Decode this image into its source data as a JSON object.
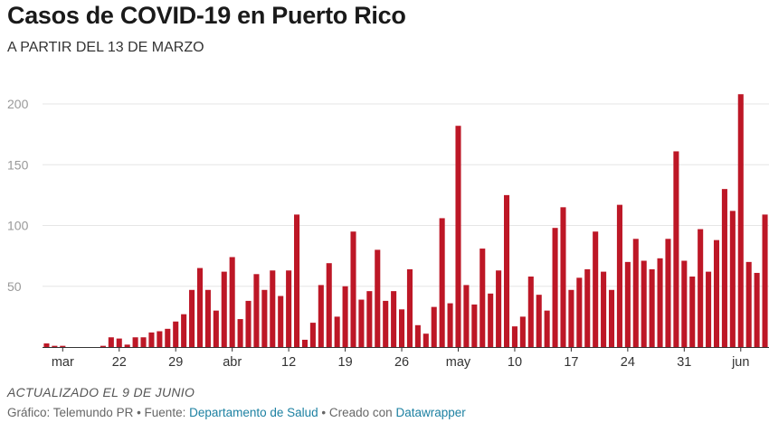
{
  "header": {
    "title": "Casos de COVID-19 en Puerto Rico",
    "subtitle": "A PARTIR DEL 13 DE MARZO"
  },
  "notes": {
    "updated": "ACTUALIZADO EL 9 DE JUNIO"
  },
  "footer": {
    "prefix": "Gráfico: Telemundo PR • Fuente: ",
    "source_link": "Departamento de Salud",
    "middle": " • Creado con ",
    "tool_link": "Datawrapper"
  },
  "colors": {
    "bar": "#bd1726",
    "grid": "#e6e6e6",
    "tick": "#999999",
    "axis_label": "#333333"
  },
  "chart_data": {
    "type": "bar",
    "x_start": "2020-03-13",
    "x_tick_labels": [
      {
        "label": "mar",
        "date": "2020-03-15"
      },
      {
        "label": "22",
        "date": "2020-03-22"
      },
      {
        "label": "29",
        "date": "2020-03-29"
      },
      {
        "label": "abr",
        "date": "2020-04-05"
      },
      {
        "label": "12",
        "date": "2020-04-12"
      },
      {
        "label": "19",
        "date": "2020-04-19"
      },
      {
        "label": "26",
        "date": "2020-04-26"
      },
      {
        "label": "may",
        "date": "2020-05-03"
      },
      {
        "label": "10",
        "date": "2020-05-10"
      },
      {
        "label": "17",
        "date": "2020-05-17"
      },
      {
        "label": "24",
        "date": "2020-05-24"
      },
      {
        "label": "31",
        "date": "2020-05-31"
      },
      {
        "label": "jun",
        "date": "2020-06-07"
      }
    ],
    "y_ticks": [
      50,
      100,
      150,
      200
    ],
    "ylim": [
      0,
      215
    ],
    "grid": true,
    "values": [
      3,
      1,
      1,
      0,
      0,
      0,
      0,
      1,
      8,
      7,
      2,
      8,
      8,
      12,
      13,
      15,
      21,
      27,
      47,
      65,
      47,
      30,
      62,
      74,
      23,
      38,
      60,
      47,
      63,
      42,
      63,
      109,
      6,
      20,
      51,
      69,
      25,
      50,
      95,
      39,
      46,
      80,
      38,
      46,
      31,
      64,
      18,
      11,
      33,
      106,
      36,
      182,
      51,
      35,
      81,
      44,
      63,
      125,
      17,
      25,
      58,
      43,
      30,
      98,
      115,
      47,
      57,
      64,
      95,
      62,
      47,
      117,
      70,
      89,
      71,
      64,
      73,
      89,
      161,
      71,
      58,
      97,
      62,
      88,
      130,
      112,
      208,
      70,
      61,
      109
    ]
  }
}
